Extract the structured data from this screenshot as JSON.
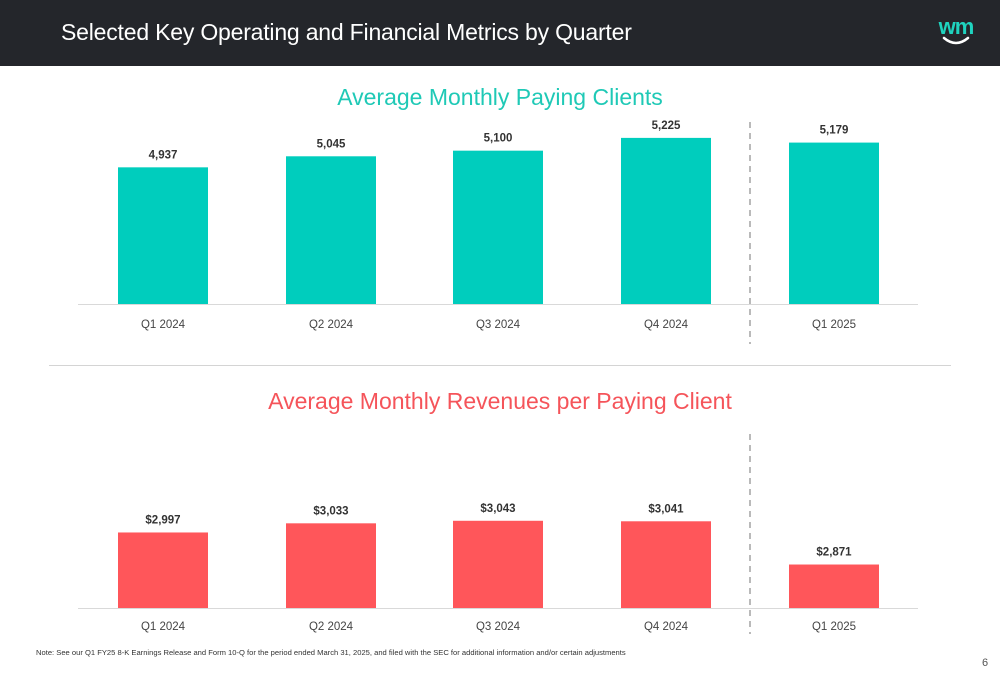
{
  "header": {
    "title": "Selected Key Operating and Financial Metrics by Quarter",
    "logo_text": "wm"
  },
  "colors": {
    "header_bg": "#24262b",
    "teal": "#00cdbd",
    "coral": "#ff565a",
    "logo": "#1fd3bf"
  },
  "chart_data": [
    {
      "type": "bar",
      "title": "Average Monthly Paying Clients",
      "categories": [
        "Q1 2024",
        "Q2 2024",
        "Q3 2024",
        "Q4 2024",
        "Q1 2025"
      ],
      "values": [
        4937,
        5045,
        5100,
        5225,
        5179
      ],
      "value_labels": [
        "4,937",
        "5,045",
        "5,100",
        "5,225",
        "5,179"
      ],
      "color": "#00cdbd",
      "ylim": [
        3600,
        5400
      ],
      "grid": false,
      "separator_before_index": 4
    },
    {
      "type": "bar",
      "title": "Average Monthly Revenues per Paying Client",
      "categories": [
        "Q1 2024",
        "Q2 2024",
        "Q3 2024",
        "Q4 2024",
        "Q1 2025"
      ],
      "values": [
        2997,
        3033,
        3043,
        3041,
        2871
      ],
      "value_labels": [
        "$2,997",
        "$3,033",
        "$3,043",
        "$3,041",
        "$2,871"
      ],
      "color": "#ff565a",
      "ylim": [
        2700,
        3400
      ],
      "grid": false,
      "separator_before_index": 4
    }
  ],
  "footnote": "Note: See our Q1 FY25 8-K Earnings Release and Form 10-Q for the period ended March 31, 2025, and filed with the SEC for additional information and/or certain adjustments",
  "page_number": "6"
}
